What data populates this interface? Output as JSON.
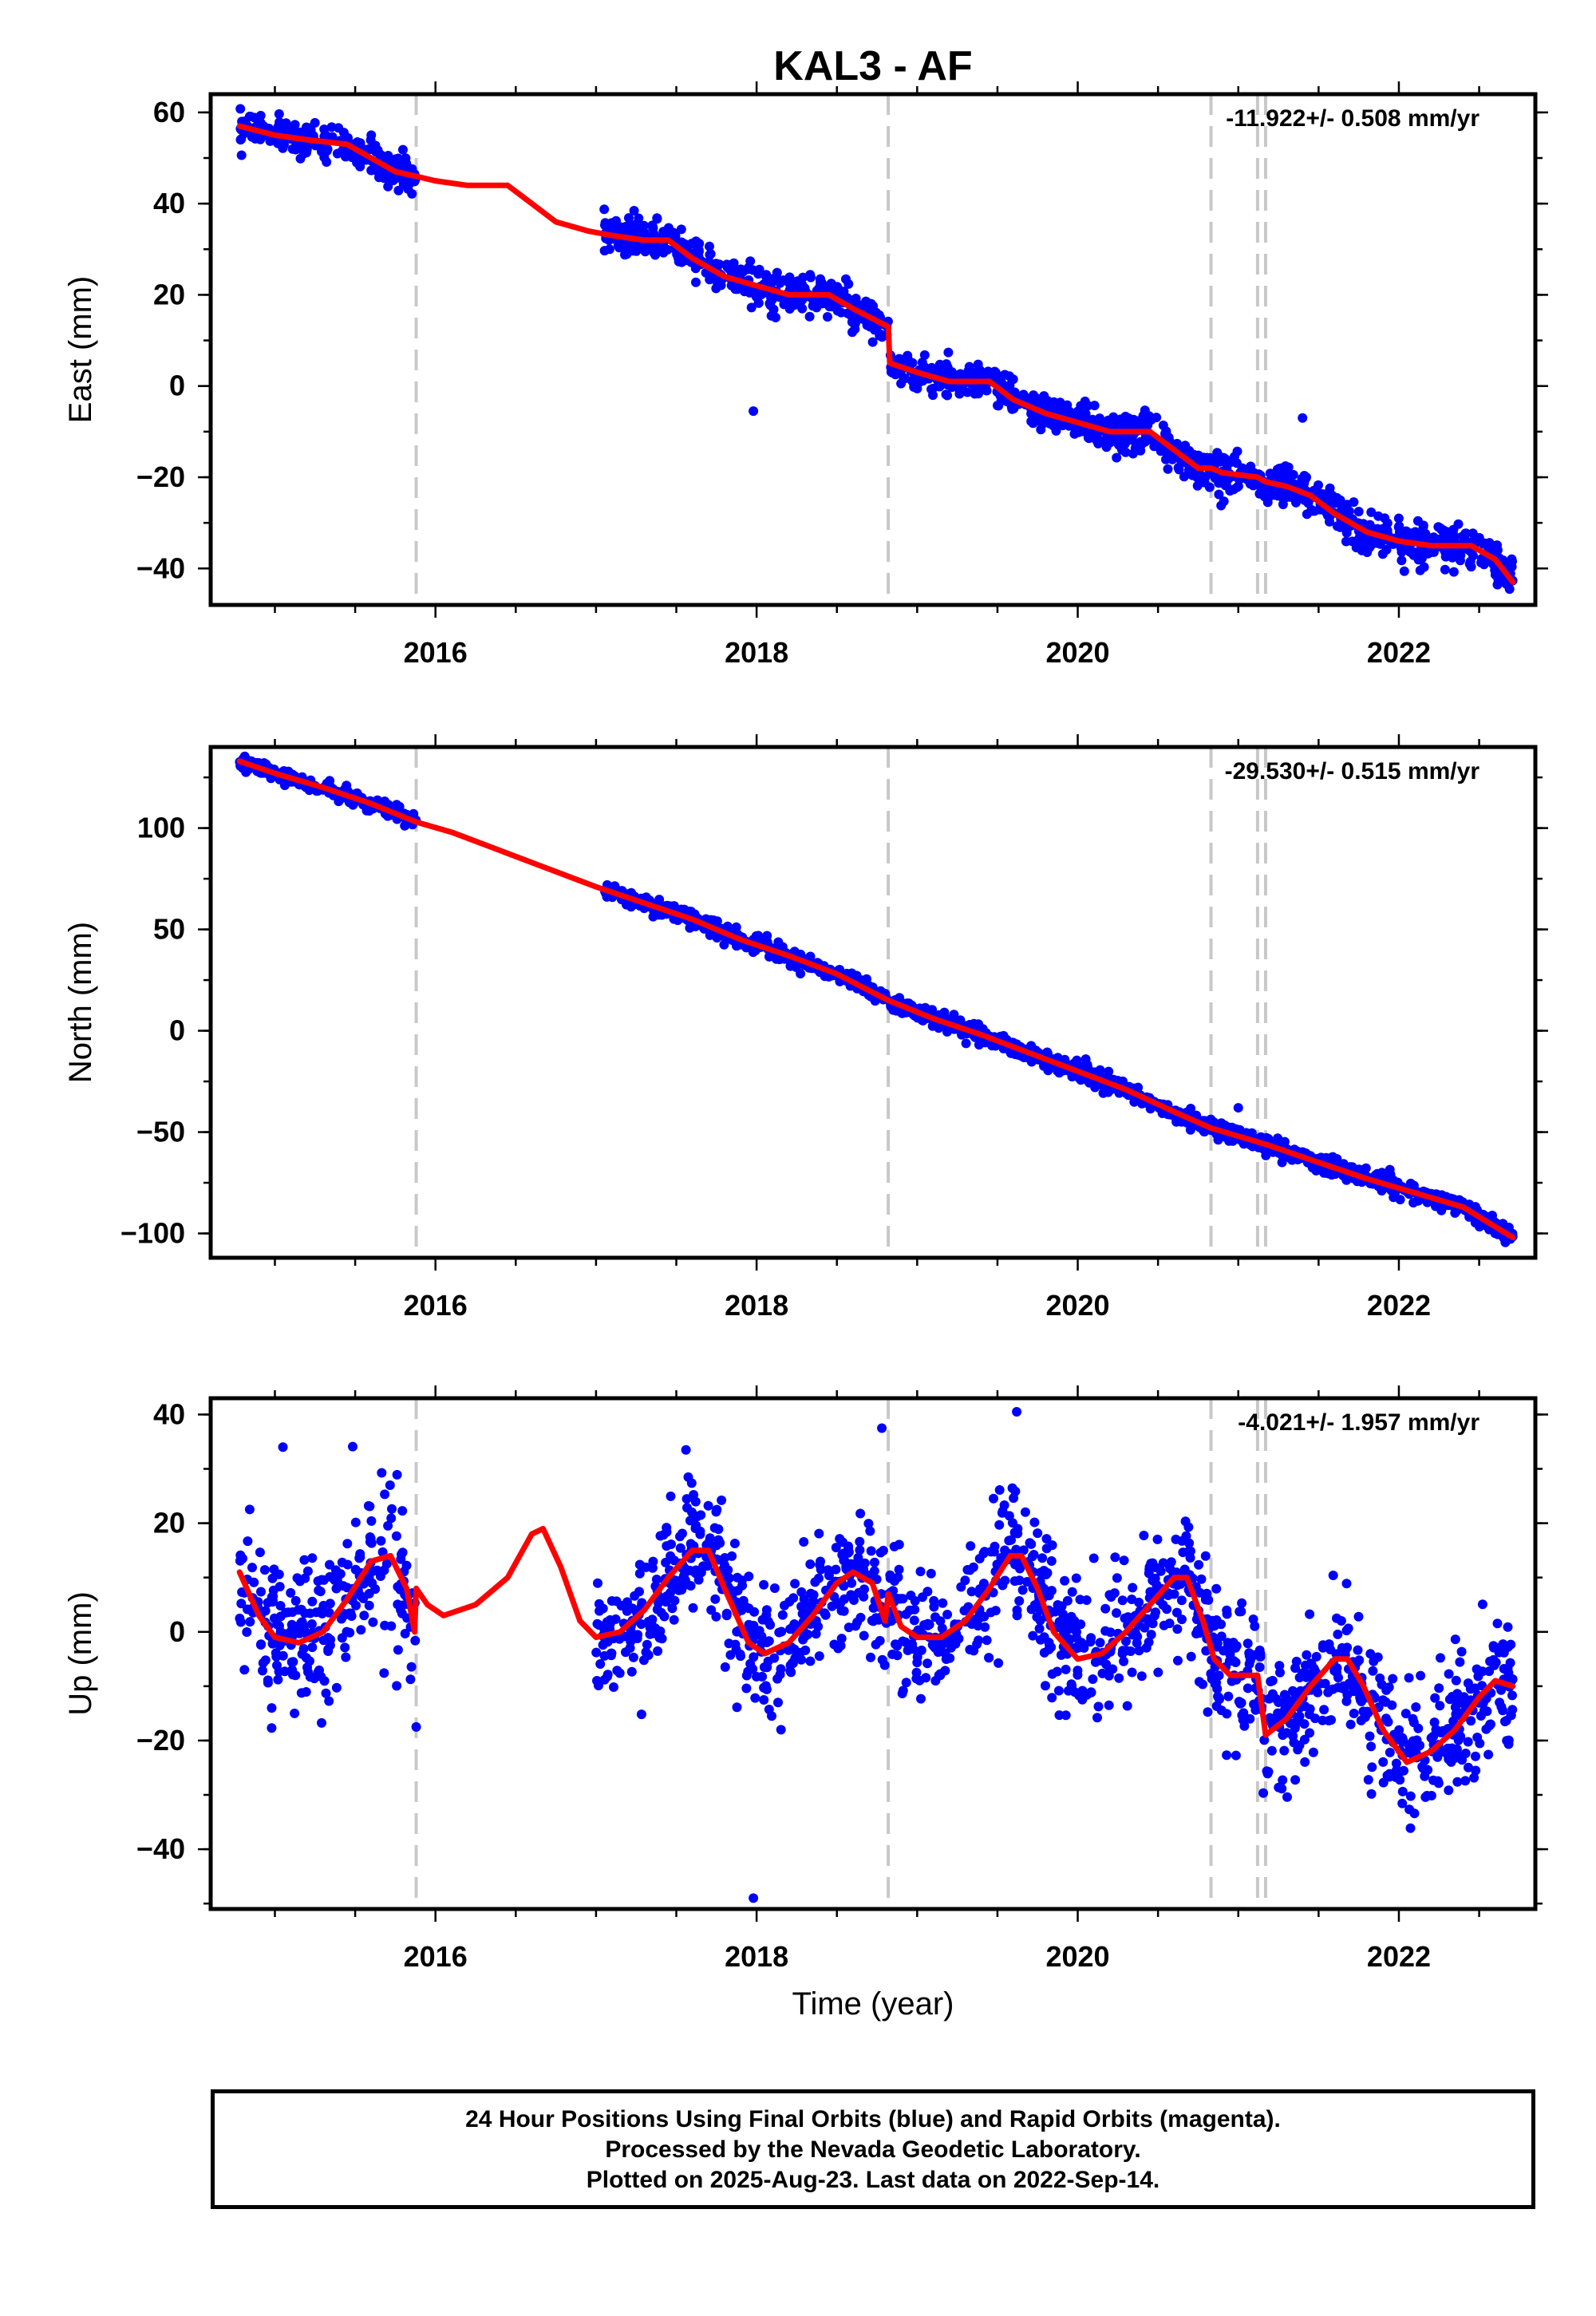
{
  "title": "KAL3 - AF",
  "footer": {
    "line1": "24 Hour Positions Using Final Orbits (blue) and Rapid Orbits (magenta).",
    "line2": "Processed by the Nevada Geodetic Laboratory.",
    "line3": "Plotted on 2025-Aug-23. Last data on 2022-Sep-14."
  },
  "colors": {
    "data_points": "#0000ff",
    "model": "#ff0000",
    "event_lines": "#c8c8c8"
  },
  "chart_data": [
    {
      "type": "scatter",
      "panel": "east",
      "ylabel": "East (mm)",
      "xlabel": "",
      "rate_text": "-11.922+/- 0.508 mm/yr",
      "xlim": [
        2014.6,
        2022.85
      ],
      "ylim": [
        -48,
        64
      ],
      "xticks": [
        2016,
        2018,
        2020,
        2022
      ],
      "yticks": [
        -40,
        -20,
        0,
        20,
        40,
        60
      ],
      "grid": false,
      "event_lines": [
        2015.88,
        2018.82,
        2020.83,
        2021.12,
        2021.17
      ],
      "model": [
        [
          2014.78,
          57
        ],
        [
          2015.0,
          55
        ],
        [
          2015.2,
          54
        ],
        [
          2015.45,
          53
        ],
        [
          2015.6,
          50
        ],
        [
          2015.75,
          47
        ],
        [
          2015.88,
          46
        ],
        [
          2016.0,
          45
        ],
        [
          2016.2,
          44
        ],
        [
          2016.45,
          44
        ],
        [
          2016.6,
          40
        ],
        [
          2016.75,
          36
        ],
        [
          2016.95,
          34
        ],
        [
          2017.1,
          33
        ],
        [
          2017.3,
          32
        ],
        [
          2017.45,
          32
        ],
        [
          2017.6,
          28
        ],
        [
          2017.8,
          24
        ],
        [
          2018.0,
          22
        ],
        [
          2018.2,
          20
        ],
        [
          2018.45,
          20
        ],
        [
          2018.6,
          17
        ],
        [
          2018.82,
          13
        ],
        [
          2018.83,
          5
        ],
        [
          2019.0,
          3
        ],
        [
          2019.2,
          1
        ],
        [
          2019.45,
          1
        ],
        [
          2019.6,
          -3
        ],
        [
          2019.8,
          -6
        ],
        [
          2020.0,
          -8
        ],
        [
          2020.2,
          -10
        ],
        [
          2020.45,
          -10
        ],
        [
          2020.6,
          -14
        ],
        [
          2020.75,
          -18
        ],
        [
          2020.83,
          -18
        ],
        [
          2020.9,
          -19
        ],
        [
          2021.12,
          -20
        ],
        [
          2021.17,
          -21
        ],
        [
          2021.3,
          -22
        ],
        [
          2021.45,
          -24
        ],
        [
          2021.6,
          -28
        ],
        [
          2021.8,
          -32
        ],
        [
          2022.0,
          -34
        ],
        [
          2022.2,
          -35
        ],
        [
          2022.45,
          -35
        ],
        [
          2022.6,
          -38
        ],
        [
          2022.71,
          -43
        ]
      ],
      "segments": [
        {
          "start": 2014.78,
          "end": 2015.88,
          "slope": -10.5,
          "offset": 57,
          "amp": 1.2,
          "noise": 1.8,
          "n": 240
        },
        {
          "start": 2017.05,
          "end": 2018.82,
          "slope": -11.9,
          "offset": 33,
          "amp": 1.5,
          "noise": 2.0,
          "n": 430
        },
        {
          "start": 2018.83,
          "end": 2020.83,
          "slope": -11.9,
          "offset": 4,
          "amp": 1.5,
          "noise": 2.0,
          "n": 480
        },
        {
          "start": 2020.83,
          "end": 2022.71,
          "slope": -13.0,
          "offset": -18,
          "amp": 1.5,
          "noise": 2.2,
          "n": 450
        }
      ],
      "outliers": [
        [
          2017.98,
          -5.5
        ],
        [
          2021.4,
          -7
        ],
        [
          2015.6,
          55
        ]
      ]
    },
    {
      "type": "scatter",
      "panel": "north",
      "ylabel": "North (mm)",
      "xlabel": "",
      "rate_text": "-29.530+/- 0.515 mm/yr",
      "xlim": [
        2014.6,
        2022.85
      ],
      "ylim": [
        -112,
        140
      ],
      "xticks": [
        2016,
        2018,
        2020,
        2022
      ],
      "yticks": [
        -100,
        -50,
        0,
        50,
        100
      ],
      "grid": false,
      "event_lines": [
        2015.88,
        2018.82,
        2020.83,
        2021.12,
        2021.17
      ],
      "model": [
        [
          2014.78,
          133
        ],
        [
          2015.0,
          127
        ],
        [
          2015.3,
          120
        ],
        [
          2015.6,
          112
        ],
        [
          2015.88,
          103
        ],
        [
          2016.1,
          98
        ],
        [
          2016.4,
          89
        ],
        [
          2016.7,
          80
        ],
        [
          2017.0,
          71
        ],
        [
          2017.3,
          63
        ],
        [
          2017.6,
          55
        ],
        [
          2017.9,
          45
        ],
        [
          2018.2,
          37
        ],
        [
          2018.5,
          28
        ],
        [
          2018.82,
          15
        ],
        [
          2019.1,
          6
        ],
        [
          2019.4,
          -2
        ],
        [
          2019.7,
          -11
        ],
        [
          2020.0,
          -20
        ],
        [
          2020.3,
          -29
        ],
        [
          2020.6,
          -40
        ],
        [
          2020.83,
          -48
        ],
        [
          2021.17,
          -56
        ],
        [
          2021.5,
          -65
        ],
        [
          2021.8,
          -73
        ],
        [
          2022.1,
          -80
        ],
        [
          2022.4,
          -87
        ],
        [
          2022.71,
          -102
        ]
      ],
      "segments": [
        {
          "start": 2014.78,
          "end": 2015.88,
          "slope": -29.5,
          "offset": 132,
          "amp": 1.0,
          "noise": 1.8,
          "n": 240
        },
        {
          "start": 2017.05,
          "end": 2018.82,
          "slope": -29.5,
          "offset": 70,
          "amp": 1.0,
          "noise": 2.0,
          "n": 430
        },
        {
          "start": 2018.83,
          "end": 2020.83,
          "slope": -30.0,
          "offset": 15,
          "amp": 1.0,
          "noise": 2.0,
          "n": 480
        },
        {
          "start": 2020.83,
          "end": 2022.71,
          "slope": -29.0,
          "offset": -48,
          "amp": 1.0,
          "noise": 2.2,
          "n": 450
        }
      ],
      "outliers": [
        [
          2021.0,
          -38
        ],
        [
          2020.05,
          -14
        ]
      ]
    },
    {
      "type": "scatter",
      "panel": "up",
      "ylabel": "Up (mm)",
      "xlabel": "Time (year)",
      "rate_text": "-4.021+/- 1.957 mm/yr",
      "xlim": [
        2014.6,
        2022.85
      ],
      "ylim": [
        -51,
        43
      ],
      "xticks": [
        2016,
        2018,
        2020,
        2022
      ],
      "yticks": [
        -40,
        -20,
        0,
        20,
        40
      ],
      "grid": false,
      "event_lines": [
        2015.88,
        2018.82,
        2020.83,
        2021.12,
        2021.17
      ],
      "model": [
        [
          2014.78,
          11
        ],
        [
          2014.9,
          3
        ],
        [
          2015.0,
          -1
        ],
        [
          2015.15,
          -2
        ],
        [
          2015.3,
          0
        ],
        [
          2015.45,
          6
        ],
        [
          2015.6,
          13
        ],
        [
          2015.72,
          14
        ],
        [
          2015.82,
          8
        ],
        [
          2015.87,
          0
        ],
        [
          2015.88,
          8
        ],
        [
          2015.95,
          5
        ],
        [
          2016.05,
          3
        ],
        [
          2016.25,
          5
        ],
        [
          2016.45,
          10
        ],
        [
          2016.6,
          18
        ],
        [
          2016.67,
          19
        ],
        [
          2016.78,
          12
        ],
        [
          2016.9,
          2
        ],
        [
          2017.0,
          -1
        ],
        [
          2017.15,
          0
        ],
        [
          2017.3,
          4
        ],
        [
          2017.45,
          10
        ],
        [
          2017.6,
          15
        ],
        [
          2017.7,
          15
        ],
        [
          2017.8,
          8
        ],
        [
          2017.95,
          -2
        ],
        [
          2018.05,
          -4
        ],
        [
          2018.2,
          -2
        ],
        [
          2018.35,
          3
        ],
        [
          2018.5,
          9
        ],
        [
          2018.6,
          11
        ],
        [
          2018.72,
          9
        ],
        [
          2018.8,
          2
        ],
        [
          2018.82,
          7
        ],
        [
          2018.9,
          1
        ],
        [
          2019.0,
          -1
        ],
        [
          2019.15,
          -1
        ],
        [
          2019.3,
          2
        ],
        [
          2019.45,
          8
        ],
        [
          2019.58,
          14
        ],
        [
          2019.65,
          14
        ],
        [
          2019.75,
          8
        ],
        [
          2019.85,
          0
        ],
        [
          2020.0,
          -5
        ],
        [
          2020.15,
          -4
        ],
        [
          2020.3,
          0
        ],
        [
          2020.45,
          5
        ],
        [
          2020.6,
          10
        ],
        [
          2020.68,
          10
        ],
        [
          2020.78,
          2
        ],
        [
          2020.85,
          -5
        ],
        [
          2020.95,
          -8
        ],
        [
          2021.12,
          -8
        ],
        [
          2021.17,
          -19
        ],
        [
          2021.3,
          -16
        ],
        [
          2021.45,
          -10
        ],
        [
          2021.6,
          -5
        ],
        [
          2021.68,
          -5
        ],
        [
          2021.78,
          -10
        ],
        [
          2021.9,
          -18
        ],
        [
          2022.05,
          -24
        ],
        [
          2022.2,
          -22
        ],
        [
          2022.35,
          -18
        ],
        [
          2022.5,
          -12
        ],
        [
          2022.6,
          -9
        ],
        [
          2022.71,
          -10
        ]
      ],
      "segments": [
        {
          "start": 2014.78,
          "end": 2015.88,
          "slope": 0,
          "offset": 5,
          "amp": 6,
          "noise": 7,
          "n": 260
        },
        {
          "start": 2017.0,
          "end": 2018.82,
          "slope": 0,
          "offset": 4,
          "amp": 8,
          "noise": 6,
          "n": 450
        },
        {
          "start": 2018.83,
          "end": 2020.83,
          "slope": 0,
          "offset": 3,
          "amp": 9,
          "noise": 6,
          "n": 480
        },
        {
          "start": 2020.83,
          "end": 2022.71,
          "slope": -4,
          "offset": -8,
          "amp": 8,
          "noise": 6,
          "n": 460
        }
      ],
      "outliers": [
        [
          2015.05,
          34
        ],
        [
          2018.78,
          37.5
        ],
        [
          2019.62,
          40.5
        ],
        [
          2017.98,
          -49
        ],
        [
          2015.88,
          -17.5
        ],
        [
          2014.98,
          -14
        ]
      ]
    }
  ]
}
